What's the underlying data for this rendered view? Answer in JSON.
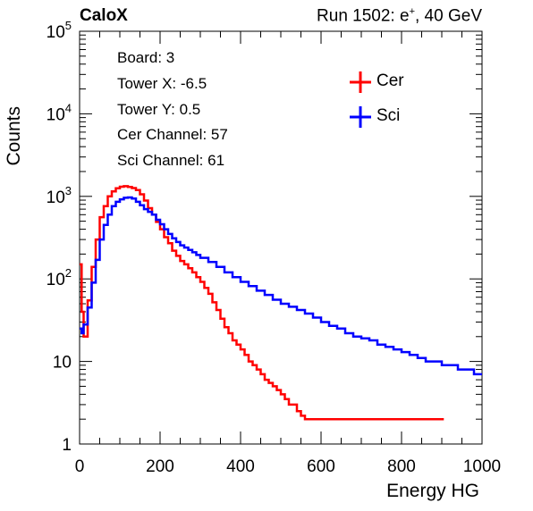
{
  "header": {
    "experiment": "CaloX",
    "run_prefix": "Run 1502: e",
    "run_sup": "+",
    "run_suffix": ", 40 GeV"
  },
  "info": {
    "lines": [
      "Board: 3",
      "Tower X: -6.5",
      "Tower Y: 0.5",
      "Cer Channel: 57",
      "Sci Channel: 61"
    ]
  },
  "legend": {
    "cer": "Cer",
    "sci": "Sci"
  },
  "chart_data": {
    "type": "line",
    "title": "",
    "xlabel": "Energy HG",
    "ylabel": "Counts",
    "xlim": [
      0,
      1000
    ],
    "ylim": [
      1,
      100000
    ],
    "yscale": "log",
    "x_ticks": [
      "0",
      "200",
      "400",
      "600",
      "800",
      "1000"
    ],
    "y_ticks": [
      {
        "base": "1",
        "exp": ""
      },
      {
        "base": "10",
        "exp": ""
      },
      {
        "base": "10",
        "exp": "2"
      },
      {
        "base": "10",
        "exp": "3"
      },
      {
        "base": "10",
        "exp": "4"
      },
      {
        "base": "10",
        "exp": "5"
      }
    ],
    "grid": false,
    "legend_position": "top-right",
    "series": [
      {
        "name": "Cer",
        "color": "#ff0000",
        "x": [
          0,
          5,
          10,
          20,
          30,
          40,
          50,
          60,
          70,
          80,
          90,
          100,
          110,
          120,
          130,
          140,
          150,
          160,
          170,
          180,
          190,
          200,
          210,
          220,
          230,
          240,
          250,
          260,
          270,
          280,
          290,
          300,
          310,
          320,
          330,
          340,
          350,
          360,
          370,
          380,
          390,
          400,
          410,
          420,
          430,
          440,
          450,
          460,
          470,
          480,
          490,
          500,
          510,
          520,
          530,
          540,
          550,
          560,
          570,
          580,
          590,
          600,
          620,
          640,
          660,
          680,
          700,
          720,
          740,
          760,
          780,
          800,
          820,
          840,
          860,
          880,
          900
        ],
        "y": [
          150,
          40,
          20,
          55,
          140,
          300,
          560,
          760,
          1000,
          1150,
          1250,
          1310,
          1330,
          1300,
          1260,
          1190,
          1060,
          890,
          720,
          600,
          490,
          400,
          320,
          270,
          220,
          190,
          165,
          150,
          135,
          120,
          105,
          92,
          78,
          66,
          52,
          42,
          33,
          26,
          22,
          18,
          16,
          14,
          12,
          10,
          9,
          8,
          7,
          6,
          5.5,
          5,
          4.5,
          4,
          3.5,
          3,
          3,
          2.5,
          2.2,
          2,
          2,
          2,
          2,
          2,
          2,
          2,
          2,
          2,
          2,
          2,
          2,
          2,
          2,
          2,
          2,
          2,
          2,
          2,
          2
        ]
      },
      {
        "name": "Sci",
        "color": "#0000ff",
        "x": [
          0,
          5,
          10,
          20,
          30,
          40,
          50,
          60,
          70,
          80,
          90,
          100,
          110,
          120,
          130,
          140,
          150,
          160,
          170,
          180,
          190,
          200,
          210,
          220,
          230,
          240,
          250,
          260,
          270,
          280,
          290,
          300,
          320,
          340,
          360,
          380,
          400,
          420,
          440,
          460,
          480,
          500,
          520,
          540,
          560,
          580,
          600,
          620,
          640,
          660,
          680,
          700,
          720,
          740,
          760,
          780,
          800,
          820,
          840,
          860,
          880,
          900,
          920,
          940,
          960,
          980,
          1000
        ],
        "y": [
          25,
          22,
          28,
          45,
          90,
          170,
          300,
          450,
          600,
          760,
          860,
          920,
          960,
          970,
          940,
          860,
          780,
          700,
          650,
          600,
          520,
          460,
          400,
          350,
          310,
          280,
          255,
          240,
          225,
          210,
          195,
          180,
          160,
          140,
          120,
          105,
          92,
          82,
          72,
          64,
          56,
          50,
          46,
          42,
          38,
          34,
          30,
          27,
          25,
          22,
          20,
          19,
          18,
          16,
          15,
          14,
          13,
          12,
          11,
          10,
          10,
          9,
          9,
          8,
          8,
          7,
          7
        ]
      }
    ]
  }
}
